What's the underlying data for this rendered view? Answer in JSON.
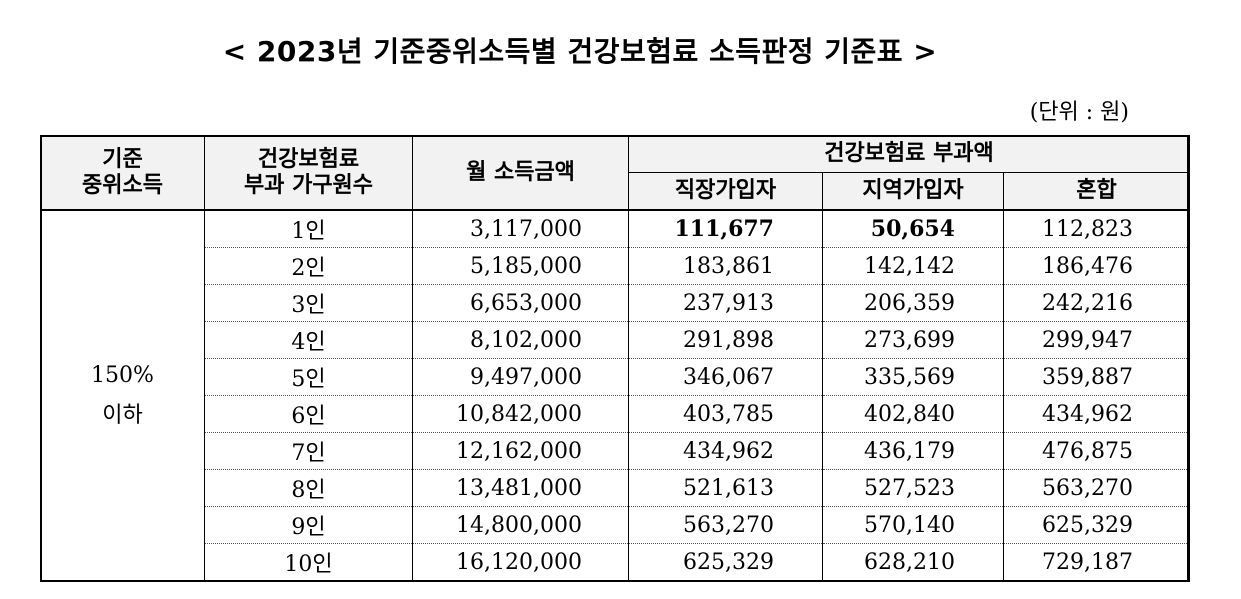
{
  "title": "< 2023년 기준중위소득별 건강보험료 소득판정 기준표 >",
  "unit": "(단위 : 원)",
  "header": {
    "col1": [
      "기준",
      "중위소득"
    ],
    "col2": [
      "건강보험료",
      "부과 가구원수"
    ],
    "col3": "월 소득금액",
    "group": "건강보험료 부과액",
    "sub": [
      "직장가입자",
      "지역가입자",
      "혼합"
    ]
  },
  "group_label": [
    "150%",
    "이하"
  ],
  "rows": [
    {
      "household": "1인",
      "income": "3,117,000",
      "employee": "111,677",
      "regional": "50,654",
      "mixed": "112,823",
      "bold": true
    },
    {
      "household": "2인",
      "income": "5,185,000",
      "employee": "183,861",
      "regional": "142,142",
      "mixed": "186,476"
    },
    {
      "household": "3인",
      "income": "6,653,000",
      "employee": "237,913",
      "regional": "206,359",
      "mixed": "242,216"
    },
    {
      "household": "4인",
      "income": "8,102,000",
      "employee": "291,898",
      "regional": "273,699",
      "mixed": "299,947"
    },
    {
      "household": "5인",
      "income": "9,497,000",
      "employee": "346,067",
      "regional": "335,569",
      "mixed": "359,887"
    },
    {
      "household": "6인",
      "income": "10,842,000",
      "employee": "403,785",
      "regional": "402,840",
      "mixed": "434,962"
    },
    {
      "household": "7인",
      "income": "12,162,000",
      "employee": "434,962",
      "regional": "436,179",
      "mixed": "476,875"
    },
    {
      "household": "8인",
      "income": "13,481,000",
      "employee": "521,613",
      "regional": "527,523",
      "mixed": "563,270"
    },
    {
      "household": "9인",
      "income": "14,800,000",
      "employee": "563,270",
      "regional": "570,140",
      "mixed": "625,329"
    },
    {
      "household": "10인",
      "income": "16,120,000",
      "employee": "625,329",
      "regional": "628,210",
      "mixed": "729,187"
    }
  ]
}
